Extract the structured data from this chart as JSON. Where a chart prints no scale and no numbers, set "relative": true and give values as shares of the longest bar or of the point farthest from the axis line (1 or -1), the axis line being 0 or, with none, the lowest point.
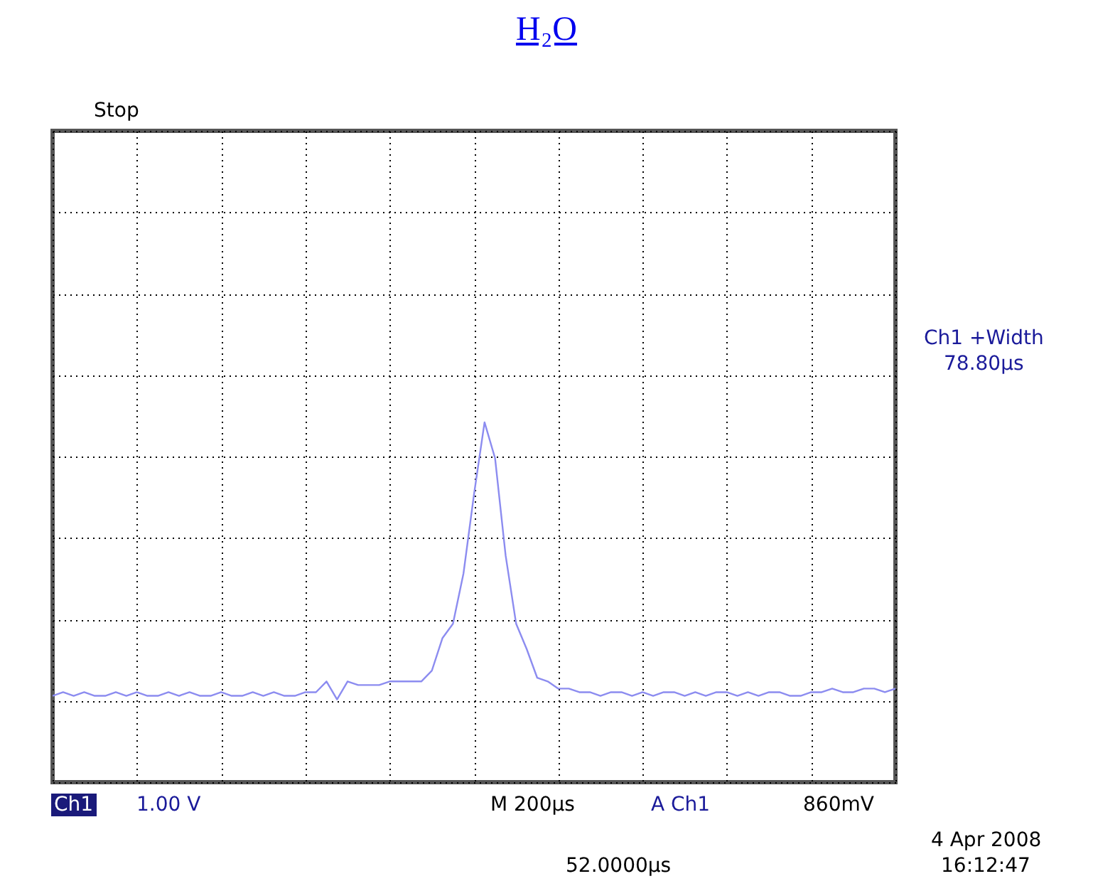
{
  "chart_data": {
    "type": "line",
    "title": "H₂O",
    "relative": true,
    "grid": true,
    "categories": [
      null,
      null,
      null,
      null,
      null,
      null,
      null,
      null,
      null,
      null,
      null,
      null,
      null,
      null,
      null,
      null,
      null,
      null,
      null,
      null,
      null,
      null,
      null,
      null,
      null,
      null,
      null,
      null,
      null,
      null,
      null,
      null,
      null,
      null,
      null,
      null,
      null,
      null,
      null,
      null,
      null,
      null,
      null,
      null,
      null,
      null,
      null,
      null,
      null,
      null,
      null,
      null,
      null,
      null,
      null,
      null,
      null,
      null,
      null,
      null,
      null,
      null,
      null,
      null,
      null,
      null,
      null,
      null,
      null,
      null,
      null,
      null,
      null,
      null,
      null,
      null,
      null,
      null,
      null,
      null,
      null
    ],
    "series": [
      {
        "color": "#8c8cf0",
        "values": [
          0.24,
          0.25,
          0.24,
          0.25,
          0.24,
          0.24,
          0.25,
          0.24,
          0.25,
          0.24,
          0.24,
          0.25,
          0.24,
          0.25,
          0.24,
          0.24,
          0.25,
          0.24,
          0.24,
          0.25,
          0.24,
          0.25,
          0.24,
          0.24,
          0.25,
          0.25,
          0.28,
          0.23,
          0.28,
          0.27,
          0.27,
          0.27,
          0.28,
          0.28,
          0.28,
          0.28,
          0.31,
          0.4,
          0.44,
          0.58,
          0.8,
          1.0,
          0.9,
          0.63,
          0.44,
          0.37,
          0.29,
          0.28,
          0.26,
          0.26,
          0.25,
          0.25,
          0.24,
          0.25,
          0.25,
          0.24,
          0.25,
          0.24,
          0.25,
          0.25,
          0.24,
          0.25,
          0.24,
          0.25,
          0.25,
          0.24,
          0.25,
          0.24,
          0.25,
          0.25,
          0.24,
          0.24,
          0.25,
          0.25,
          0.26,
          0.25,
          0.25,
          0.26,
          0.26,
          0.25,
          0.26
        ]
      }
    ],
    "annotations": [
      "Stop",
      "Ch1 +Width",
      "78.80µs",
      "Ch1",
      "1.00 V",
      "M 200µs",
      "A Ch1",
      "860mV",
      "4 Apr  2008",
      "16:12:47",
      "52.0000µs"
    ]
  }
}
